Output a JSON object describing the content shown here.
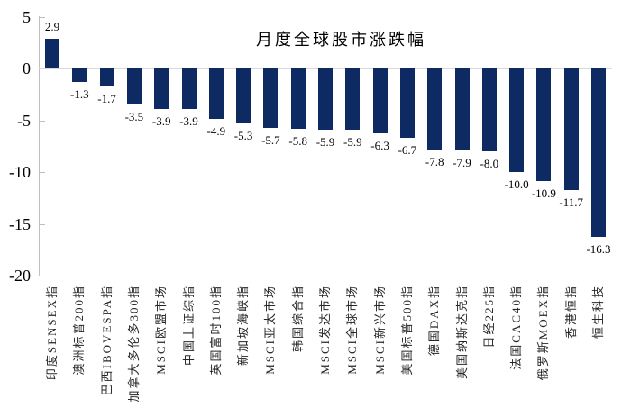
{
  "chart_data": {
    "type": "bar",
    "title": "月度全球股市涨跌幅",
    "categories": [
      "印度SENSEX指",
      "澳洲标普200指",
      "巴西IBOVESPA指",
      "加拿大多伦多300指",
      "MSCI欧盟市场",
      "中国上证综指",
      "英国富时100指",
      "新加坡海峡指",
      "MSCI亚太市场",
      "韩国综合指",
      "MSCI发达市场",
      "MSCI全球市场",
      "MSCI新兴市场",
      "美国标普500指",
      "德国DAX指",
      "美国纳斯达克指",
      "日经225指",
      "法国CAC40指",
      "俄罗斯MOEX指",
      "香港恒指",
      "恒生科技"
    ],
    "values": [
      2.9,
      -1.3,
      -1.7,
      -3.5,
      -3.9,
      -3.9,
      -4.9,
      -5.3,
      -5.7,
      -5.8,
      -5.9,
      -5.9,
      -6.3,
      -6.7,
      -7.8,
      -7.9,
      -8.0,
      -10.0,
      -10.9,
      -11.7,
      -16.3
    ],
    "xlabel": "",
    "ylabel": "",
    "ylim": [
      -20,
      5
    ],
    "yticks": [
      5,
      0,
      -5,
      -10,
      -15,
      -20
    ],
    "grid": false,
    "legend_position": "none",
    "value_labels_shown": true,
    "bar_color": "#0E2A62",
    "axis_color": "#BFBFBF",
    "zero_line_color": "#D9D9D9",
    "text_color": "#000000"
  }
}
